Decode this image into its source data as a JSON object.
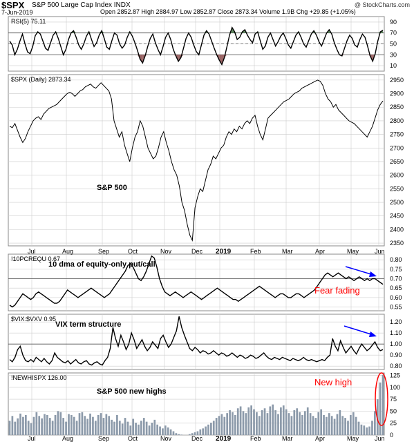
{
  "header": {
    "symbol": "$SPX",
    "name": "S&P 500 Large Cap Index INDX",
    "date": "7-Jun-2019",
    "ohlc": "Open 2852.87  High 2884.97  Low 2852.87  Close 2873.34  Volume 1.9B  Chg +29.85 (+1.05%)",
    "credit": "@ StockCharts.com"
  },
  "colors": {
    "line": "#000000",
    "grid": "#cccccc",
    "rsi_over": "#4a7a4a",
    "rsi_under": "#8a4a4a",
    "bars": "#8c9aaa",
    "annotation_red": "#ff0000",
    "annotation_blue": "#0000ff"
  },
  "chart_data": [
    {
      "type": "line",
      "panel": "rsi",
      "label": "RSI(5) 75.11",
      "yticks": [
        "90",
        "70",
        "50",
        "30",
        "10"
      ],
      "ylim": [
        0,
        100
      ],
      "reference_lines": [
        70,
        50,
        30
      ],
      "y": [
        55,
        48,
        30,
        40,
        55,
        68,
        50,
        35,
        32,
        45,
        65,
        72,
        68,
        55,
        42,
        38,
        52,
        66,
        72,
        60,
        45,
        30,
        40,
        58,
        70,
        74,
        62,
        48,
        40,
        50,
        64,
        72,
        58,
        45,
        52,
        66,
        74,
        60,
        44,
        40,
        56,
        70,
        66,
        50,
        42,
        48,
        62,
        72,
        64,
        52,
        38,
        22,
        15,
        28,
        45,
        60,
        68,
        52,
        40,
        30,
        45,
        62,
        70,
        58,
        40,
        28,
        18,
        25,
        42,
        60,
        70,
        62,
        48,
        36,
        30,
        48,
        66,
        74,
        68,
        55,
        42,
        30,
        20,
        12,
        25,
        45,
        66,
        80,
        72,
        58,
        62,
        72,
        76,
        66,
        58,
        52,
        68,
        72,
        56,
        40,
        46,
        62,
        70,
        58,
        46,
        54,
        64,
        70,
        60,
        48,
        42,
        54,
        66,
        72,
        62,
        50,
        44,
        56,
        68,
        74,
        66,
        54,
        46,
        58,
        70,
        76,
        68,
        52,
        40,
        30,
        28,
        42,
        56,
        66,
        60,
        48,
        44,
        58,
        68,
        62,
        46,
        28,
        18,
        32,
        55,
        72,
        75
      ]
    },
    {
      "type": "line",
      "panel": "spx",
      "label": "$SPX (Daily) 2873.34",
      "annotation": "S&P 500",
      "yticks": [
        "2950",
        "2900",
        "2850",
        "2800",
        "2750",
        "2700",
        "2650",
        "2600",
        "2550",
        "2500",
        "2450",
        "2400",
        "2350"
      ],
      "ylim": [
        2340,
        2970
      ],
      "xticks": [
        "Jul",
        "Aug",
        "Sep",
        "Oct",
        "Nov",
        "Dec",
        "2019",
        "Feb",
        "Mar",
        "Apr",
        "May",
        "Jun"
      ],
      "y": [
        2780,
        2775,
        2790,
        2765,
        2740,
        2720,
        2735,
        2760,
        2780,
        2800,
        2810,
        2815,
        2805,
        2825,
        2835,
        2845,
        2850,
        2855,
        2860,
        2870,
        2880,
        2890,
        2900,
        2905,
        2900,
        2890,
        2900,
        2910,
        2915,
        2925,
        2930,
        2935,
        2925,
        2920,
        2930,
        2940,
        2930,
        2920,
        2910,
        2880,
        2800,
        2770,
        2740,
        2760,
        2710,
        2680,
        2650,
        2700,
        2740,
        2760,
        2800,
        2780,
        2740,
        2700,
        2680,
        2660,
        2670,
        2700,
        2740,
        2760,
        2720,
        2690,
        2650,
        2620,
        2600,
        2560,
        2500,
        2470,
        2420,
        2380,
        2360,
        2480,
        2520,
        2550,
        2540,
        2580,
        2620,
        2640,
        2670,
        2660,
        2680,
        2700,
        2710,
        2740,
        2760,
        2750,
        2770,
        2760,
        2780,
        2770,
        2790,
        2800,
        2790,
        2810,
        2820,
        2780,
        2750,
        2730,
        2770,
        2810,
        2820,
        2830,
        2840,
        2850,
        2860,
        2870,
        2875,
        2880,
        2890,
        2900,
        2905,
        2910,
        2920,
        2925,
        2930,
        2935,
        2940,
        2945,
        2950,
        2945,
        2930,
        2900,
        2880,
        2870,
        2850,
        2860,
        2840,
        2830,
        2820,
        2810,
        2800,
        2795,
        2790,
        2780,
        2770,
        2760,
        2750,
        2740,
        2760,
        2780,
        2810,
        2840,
        2860,
        2873
      ]
    },
    {
      "type": "line",
      "panel": "putcall",
      "label": "!10PCREQU 0.67",
      "annotation": "10 dma of equity-only put/call",
      "note": "Fear fading",
      "yticks": [
        "0.80",
        "0.75",
        "0.70",
        "0.65",
        "0.60",
        "0.55"
      ],
      "ylim": [
        0.53,
        0.83
      ],
      "reference_lines": [
        0.7
      ],
      "y": [
        0.56,
        0.55,
        0.56,
        0.58,
        0.6,
        0.62,
        0.61,
        0.6,
        0.59,
        0.6,
        0.62,
        0.63,
        0.62,
        0.61,
        0.6,
        0.59,
        0.58,
        0.57,
        0.57,
        0.58,
        0.6,
        0.62,
        0.64,
        0.63,
        0.62,
        0.61,
        0.6,
        0.61,
        0.62,
        0.63,
        0.64,
        0.65,
        0.64,
        0.63,
        0.62,
        0.61,
        0.6,
        0.61,
        0.62,
        0.64,
        0.66,
        0.68,
        0.7,
        0.72,
        0.74,
        0.77,
        0.78,
        0.76,
        0.73,
        0.7,
        0.69,
        0.71,
        0.74,
        0.78,
        0.82,
        0.81,
        0.76,
        0.7,
        0.66,
        0.63,
        0.62,
        0.61,
        0.62,
        0.63,
        0.62,
        0.61,
        0.6,
        0.61,
        0.62,
        0.63,
        0.62,
        0.61,
        0.6,
        0.59,
        0.6,
        0.61,
        0.62,
        0.63,
        0.64,
        0.65,
        0.64,
        0.63,
        0.62,
        0.61,
        0.6,
        0.59,
        0.59,
        0.58,
        0.59,
        0.6,
        0.61,
        0.62,
        0.63,
        0.64,
        0.65,
        0.66,
        0.65,
        0.64,
        0.63,
        0.62,
        0.61,
        0.6,
        0.61,
        0.62,
        0.62,
        0.61,
        0.6,
        0.6,
        0.61,
        0.62,
        0.62,
        0.61,
        0.6,
        0.61,
        0.62,
        0.63,
        0.64,
        0.66,
        0.68,
        0.7,
        0.72,
        0.73,
        0.72,
        0.71,
        0.72,
        0.73,
        0.72,
        0.71,
        0.7,
        0.71,
        0.7,
        0.69,
        0.7,
        0.71,
        0.7,
        0.69,
        0.7,
        0.69,
        0.7,
        0.7,
        0.69,
        0.68,
        0.67
      ]
    },
    {
      "type": "line",
      "panel": "vix",
      "label": "$VIX:$VXV 0.95",
      "annotation": "VIX term structure",
      "yticks": [
        "1.20",
        "1.10",
        "1.00",
        "0.90",
        "0.80"
      ],
      "ylim": [
        0.77,
        1.27
      ],
      "reference_lines": [
        1.0
      ],
      "y": [
        0.86,
        0.84,
        0.88,
        0.95,
        0.98,
        0.9,
        0.85,
        0.84,
        0.86,
        0.84,
        0.88,
        0.86,
        0.84,
        0.87,
        0.84,
        0.82,
        0.85,
        0.92,
        0.88,
        0.86,
        0.84,
        0.83,
        0.85,
        0.82,
        0.84,
        0.86,
        0.83,
        0.82,
        0.84,
        0.85,
        0.82,
        0.81,
        0.83,
        0.84,
        0.82,
        0.81,
        0.85,
        0.88,
        0.96,
        1.15,
        1.05,
        0.98,
        1.08,
        1.02,
        0.95,
        1.0,
        1.1,
        1.04,
        0.96,
        1.0,
        1.04,
        0.98,
        0.94,
        0.97,
        1.02,
        0.99,
        0.96,
        1.05,
        1.08,
        1.02,
        0.97,
        1.0,
        1.06,
        1.12,
        1.25,
        1.15,
        1.08,
        1.02,
        0.96,
        0.94,
        0.97,
        0.95,
        0.92,
        0.94,
        0.93,
        0.91,
        0.92,
        0.94,
        0.92,
        0.9,
        0.92,
        0.91,
        0.89,
        0.9,
        0.92,
        0.9,
        0.88,
        0.9,
        0.89,
        0.87,
        0.88,
        0.9,
        0.89,
        0.87,
        0.88,
        0.9,
        0.92,
        0.89,
        0.87,
        0.86,
        0.88,
        0.87,
        0.86,
        0.88,
        0.87,
        0.86,
        0.85,
        0.87,
        0.86,
        0.85,
        0.86,
        0.88,
        0.86,
        0.85,
        0.86,
        0.85,
        0.84,
        0.85,
        0.86,
        0.85,
        0.88,
        0.9,
        1.05,
        0.98,
        0.94,
        1.03,
        0.97,
        0.92,
        0.95,
        0.98,
        0.94,
        0.91,
        0.96,
        1.0,
        0.97,
        0.94,
        0.96,
        0.99,
        1.02,
        0.97,
        0.94,
        0.95
      ]
    },
    {
      "type": "bar",
      "panel": "newhighs",
      "label": "!NEWHISPX 126.00",
      "annotation": "S&P 500 new highs",
      "note": "New high",
      "yticks": [
        "125",
        "100",
        "75",
        "50",
        "25",
        "0"
      ],
      "ylim": [
        0,
        130
      ],
      "xticks": [
        "Jul",
        "Aug",
        "Sep",
        "Oct",
        "Nov",
        "Dec",
        "2019",
        "Feb",
        "Mar",
        "Apr",
        "May",
        "Jun"
      ],
      "values": [
        30,
        40,
        28,
        35,
        45,
        38,
        42,
        30,
        25,
        38,
        48,
        40,
        35,
        44,
        42,
        36,
        30,
        42,
        50,
        48,
        36,
        28,
        44,
        42,
        38,
        30,
        46,
        48,
        40,
        34,
        45,
        38,
        30,
        42,
        46,
        36,
        44,
        40,
        32,
        28,
        42,
        30,
        24,
        36,
        28,
        20,
        34,
        26,
        22,
        30,
        36,
        28,
        20,
        26,
        32,
        22,
        18,
        14,
        20,
        16,
        12,
        8,
        4,
        2,
        1,
        0,
        0,
        2,
        4,
        6,
        8,
        12,
        14,
        18,
        22,
        26,
        30,
        36,
        40,
        44,
        38,
        46,
        52,
        48,
        42,
        56,
        60,
        50,
        46,
        58,
        62,
        54,
        48,
        40,
        52,
        56,
        46,
        60,
        64,
        52,
        44,
        58,
        62,
        54,
        46,
        40,
        52,
        56,
        48,
        42,
        50,
        58,
        46,
        40,
        36,
        48,
        54,
        42,
        38,
        46,
        40,
        34,
        44,
        52,
        40,
        36,
        30,
        42,
        48,
        38,
        28,
        22,
        20,
        16,
        18,
        30,
        50,
        75,
        110,
        126
      ]
    }
  ]
}
